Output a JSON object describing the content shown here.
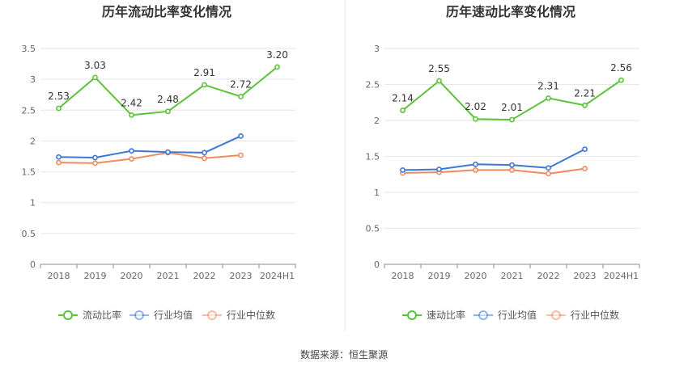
{
  "source_text": "数据来源：恒生聚源",
  "colors": {
    "primary": "#5cc13a",
    "industry_avg": "#3d77d4",
    "industry_median": "#ef8a5d"
  },
  "chart_data": [
    {
      "type": "line",
      "title": "历年流动比率变化情况",
      "categories": [
        "2018",
        "2019",
        "2020",
        "2021",
        "2022",
        "2023",
        "2024H1"
      ],
      "ylim": [
        0,
        3.5
      ],
      "yticks": [
        "0",
        "0.5",
        "1",
        "1.5",
        "2",
        "2.5",
        "3",
        "3.5"
      ],
      "legend_position": "bottom",
      "series": [
        {
          "name": "流动比率",
          "key": "primary",
          "values": [
            2.53,
            3.03,
            2.42,
            2.48,
            2.91,
            2.72,
            3.2
          ],
          "labels": [
            "2.53",
            "3.03",
            "2.42",
            "2.48",
            "2.91",
            "2.72",
            "3.20"
          ]
        },
        {
          "name": "行业均值",
          "key": "industry_avg",
          "values": [
            1.74,
            1.73,
            1.84,
            1.82,
            1.81,
            2.08,
            null
          ]
        },
        {
          "name": "行业中位数",
          "key": "industry_median",
          "values": [
            1.65,
            1.64,
            1.71,
            1.81,
            1.72,
            1.77,
            null
          ]
        }
      ]
    },
    {
      "type": "line",
      "title": "历年速动比率变化情况",
      "categories": [
        "2018",
        "2019",
        "2020",
        "2021",
        "2022",
        "2023",
        "2024H1"
      ],
      "ylim": [
        0,
        3
      ],
      "yticks": [
        "0",
        "0.5",
        "1",
        "1.5",
        "2",
        "2.5",
        "3"
      ],
      "legend_position": "bottom",
      "series": [
        {
          "name": "速动比率",
          "key": "primary",
          "values": [
            2.14,
            2.55,
            2.02,
            2.01,
            2.31,
            2.21,
            2.56
          ],
          "labels": [
            "2.14",
            "2.55",
            "2.02",
            "2.01",
            "2.31",
            "2.21",
            "2.56"
          ]
        },
        {
          "name": "行业均值",
          "key": "industry_avg",
          "values": [
            1.31,
            1.32,
            1.39,
            1.38,
            1.34,
            1.6,
            null
          ]
        },
        {
          "name": "行业中位数",
          "key": "industry_median",
          "values": [
            1.27,
            1.28,
            1.31,
            1.31,
            1.26,
            1.33,
            null
          ]
        }
      ]
    }
  ]
}
